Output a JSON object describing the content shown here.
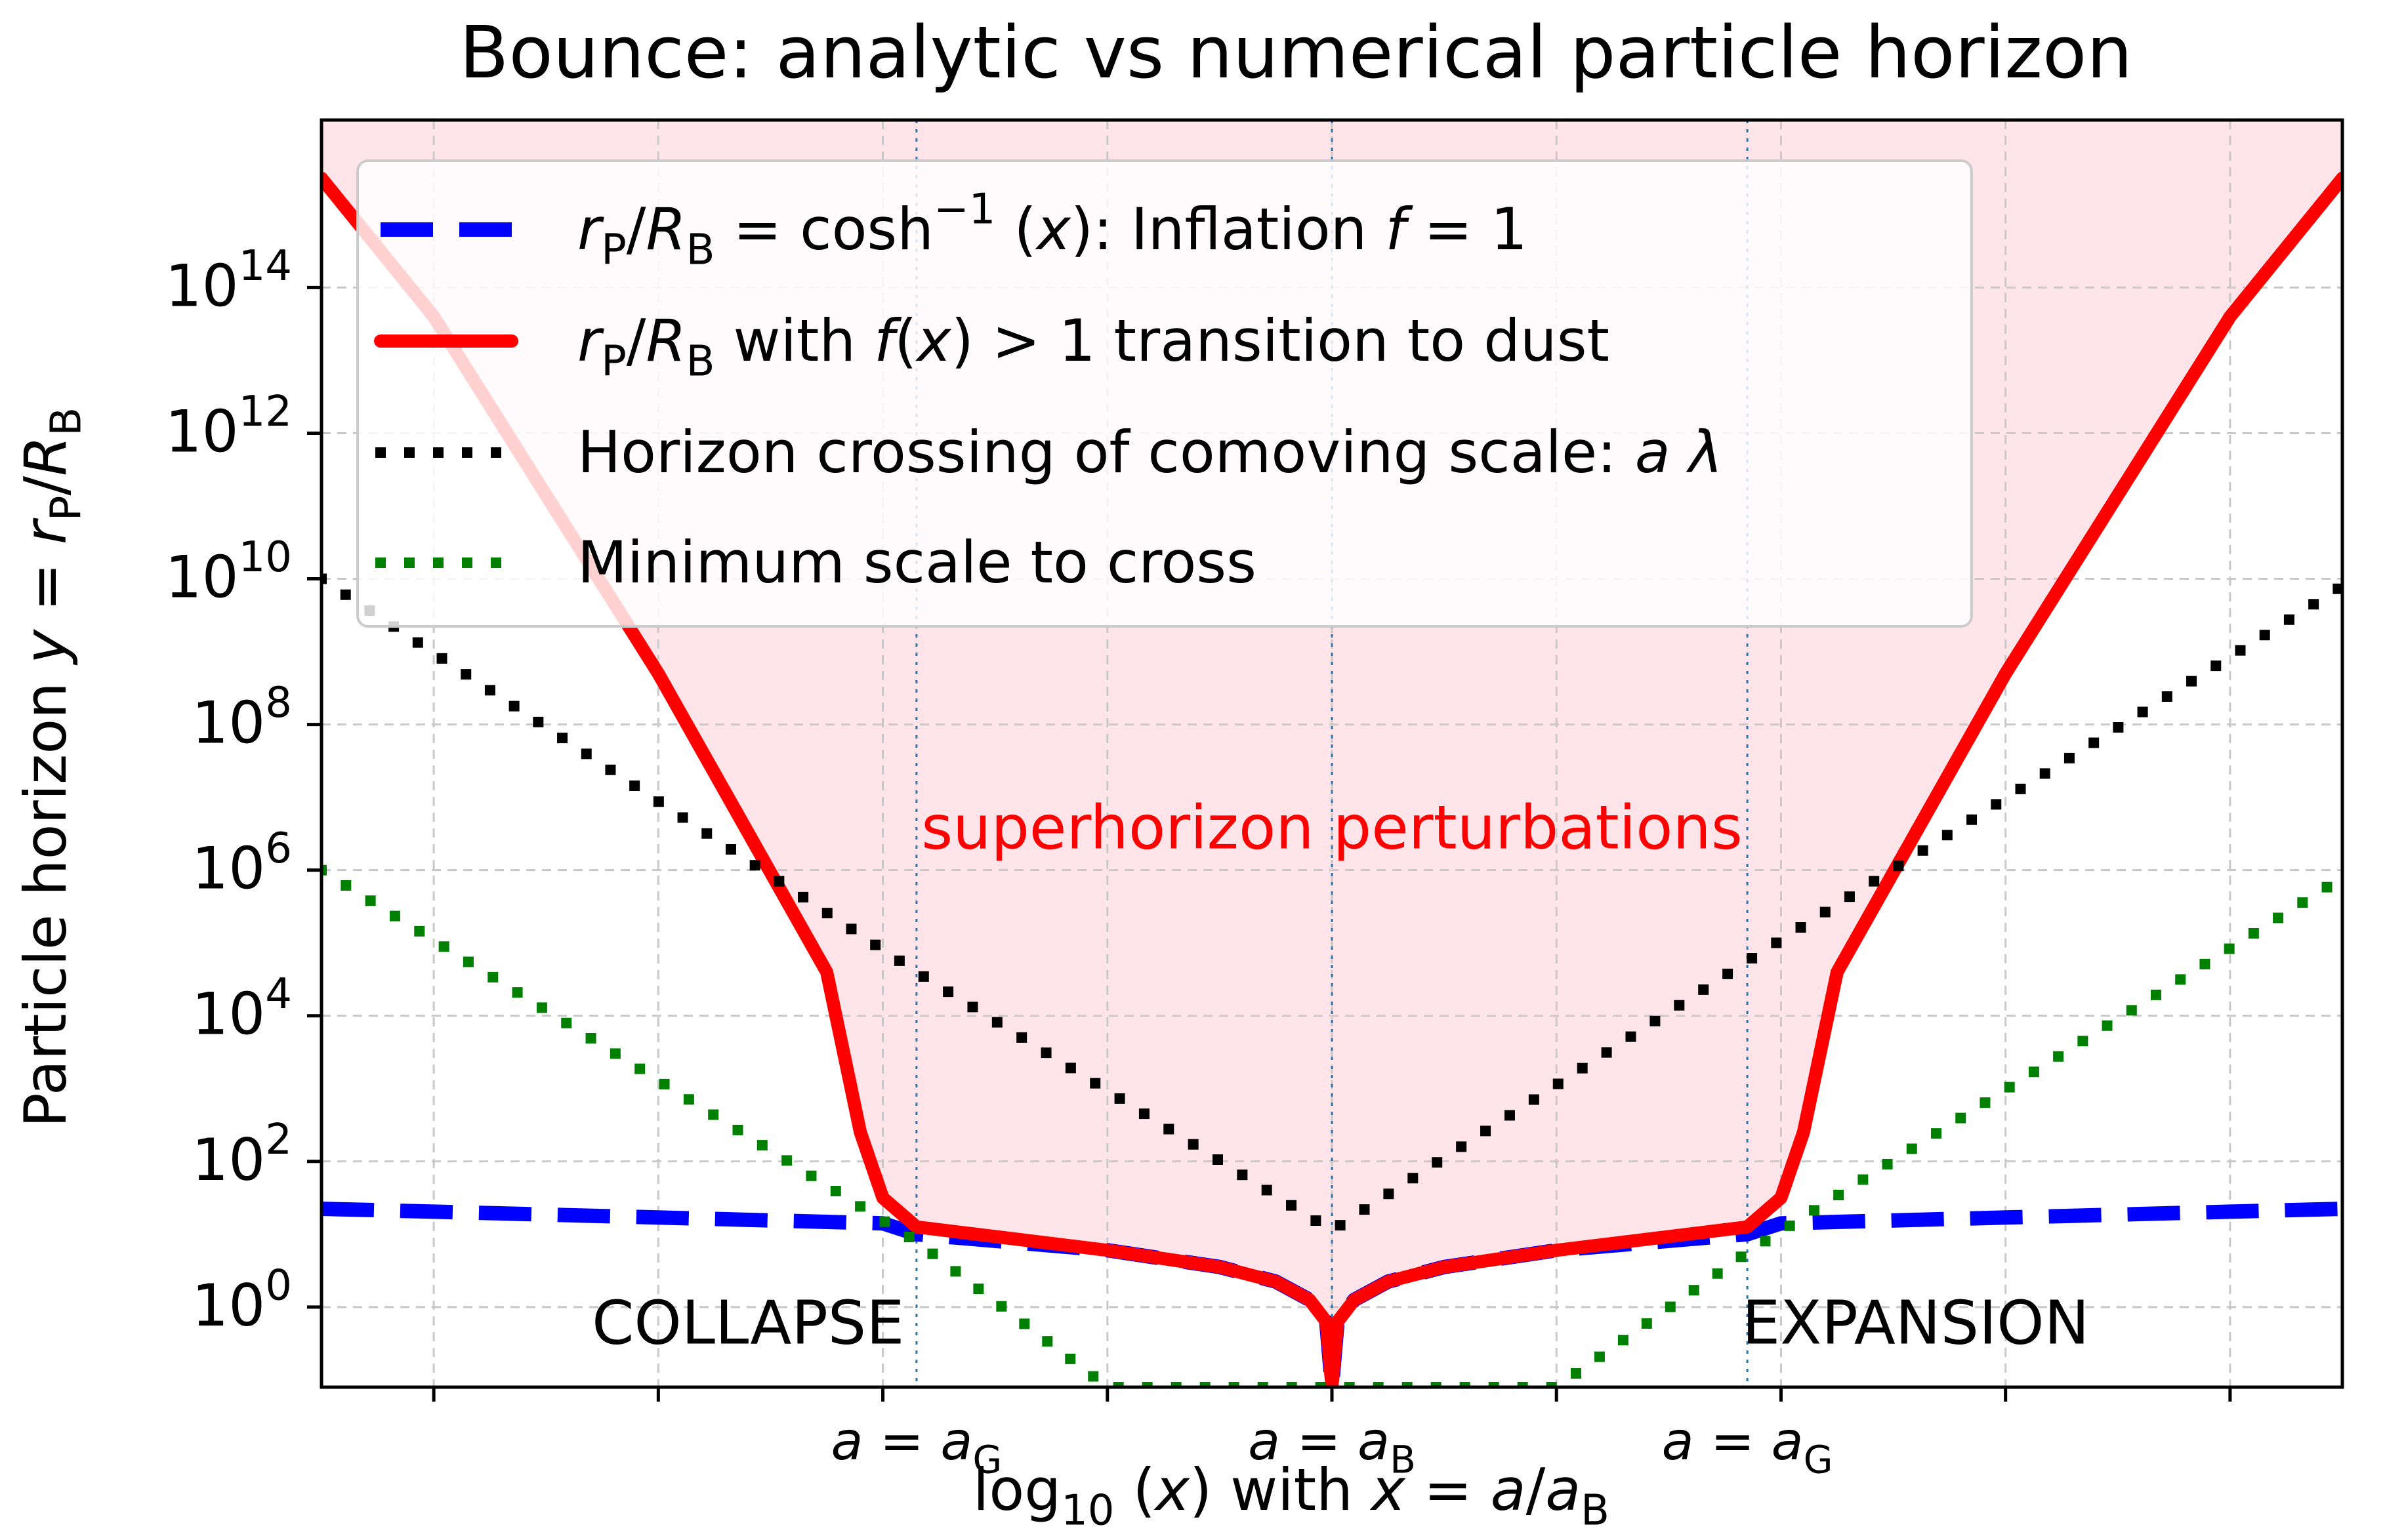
{
  "chart_data": {
    "type": "line",
    "title": "Bounce: analytic vs numerical particle horizon",
    "xlabel": "log₁₀ (x) with x = a/aʙ",
    "ylabel": "Particle horizon y = rₚ/Rʙ",
    "yscale": "log",
    "xlim": [
      -9,
      9
    ],
    "ylim_log10": [
      -1.1,
      16.3
    ],
    "ytick_exponents": [
      0,
      2,
      4,
      6,
      8,
      10,
      12,
      14
    ],
    "xticks": [
      -8,
      -6,
      -4,
      -2,
      0,
      2,
      4,
      6,
      8
    ],
    "x_label_ticks": [
      {
        "x": -3.7,
        "base": "a = a",
        "sub": "G"
      },
      {
        "x": 0,
        "base": "a = a",
        "sub": "B"
      },
      {
        "x": 3.7,
        "base": "a = a",
        "sub": "G"
      }
    ],
    "vlines": [
      -3.7,
      0,
      3.7
    ],
    "grid": true,
    "legend_position": "top-left",
    "legend": [
      {
        "key": "inflation",
        "parts": [
          [
            "i",
            "r"
          ],
          [
            "sub",
            "P"
          ],
          [
            "n",
            "/"
          ],
          [
            "i",
            "R"
          ],
          [
            "sub",
            "B"
          ],
          [
            "n",
            " = cosh"
          ],
          [
            "sup",
            "−1"
          ],
          [
            "n",
            " ("
          ],
          [
            "i",
            "x"
          ],
          [
            "n",
            "): Inflation "
          ],
          [
            "i",
            "f"
          ],
          [
            "n",
            " = 1"
          ]
        ]
      },
      {
        "key": "dust",
        "parts": [
          [
            "i",
            "r"
          ],
          [
            "sub",
            "P"
          ],
          [
            "n",
            "/"
          ],
          [
            "i",
            "R"
          ],
          [
            "sub",
            "B"
          ],
          [
            "n",
            " with "
          ],
          [
            "i",
            "f"
          ],
          [
            "n",
            "("
          ],
          [
            "i",
            "x"
          ],
          [
            "n",
            ") > 1 transition to dust"
          ]
        ]
      },
      {
        "key": "crossing",
        "parts": [
          [
            "n",
            "Horizon crossing of comoving scale: "
          ],
          [
            "i",
            "a λ"
          ]
        ]
      },
      {
        "key": "minimum",
        "parts": [
          [
            "n",
            "Minimum scale to cross"
          ]
        ]
      }
    ],
    "series": [
      {
        "key": "inflation",
        "name": "Inflation f = 1",
        "color": "#0000ff",
        "style": "dashed",
        "x": [
          -9,
          -8,
          -6,
          -4,
          -3.7,
          -2,
          -1,
          -0.5,
          -0.2,
          -0.05,
          0,
          0.05,
          0.2,
          0.5,
          1,
          2,
          3.7,
          4,
          6,
          8,
          9
        ],
        "log10y": [
          1.35,
          1.31,
          1.23,
          1.15,
          1.0,
          0.78,
          0.55,
          0.35,
          0.1,
          -0.2,
          -1.1,
          -0.2,
          0.1,
          0.35,
          0.55,
          0.78,
          1.0,
          1.15,
          1.23,
          1.31,
          1.35
        ]
      },
      {
        "key": "dust",
        "name": "f(x) > 1 transition to dust",
        "color": "#ff0000",
        "style": "solid",
        "x": [
          -9,
          -8,
          -6,
          -4.5,
          -4.2,
          -4.0,
          -3.7,
          -2,
          -1,
          -0.5,
          -0.2,
          -0.05,
          0,
          0.05,
          0.2,
          0.5,
          1,
          2,
          3.7,
          4.0,
          4.2,
          4.5,
          6,
          8,
          9
        ],
        "log10y": [
          15.5,
          13.6,
          8.7,
          4.6,
          2.4,
          1.5,
          1.1,
          0.78,
          0.55,
          0.35,
          0.1,
          -0.2,
          -1.1,
          -0.2,
          0.1,
          0.35,
          0.55,
          0.78,
          1.1,
          1.5,
          2.4,
          4.6,
          8.7,
          13.6,
          15.5
        ]
      },
      {
        "key": "crossing",
        "name": "Horizon crossing of comoving scale: aλ",
        "color": "#000000",
        "style": "dotted",
        "x": [
          -9,
          -3.7,
          0,
          3.7,
          9
        ],
        "log10y": [
          10.0,
          4.6,
          1.05,
          4.75,
          9.9
        ]
      },
      {
        "key": "minimum",
        "name": "Minimum scale to cross",
        "color": "#008000",
        "style": "dotted",
        "x": [
          -9,
          -3.7,
          -2.0,
          2.0,
          3.7,
          9
        ],
        "log10y": [
          6.0,
          0.9,
          -1.1,
          -1.1,
          0.75,
          5.9
        ]
      }
    ],
    "fill_region": {
      "label": "superhorizon perturbations",
      "color": "#ffe4ea"
    },
    "annotations": [
      {
        "text": "superhorizon perturbations",
        "x": 0,
        "log10y": 6.3,
        "color": "#ff0000"
      },
      {
        "text": "COLLAPSE",
        "x": -5.2,
        "log10y": -0.5,
        "color": "#000000"
      },
      {
        "text": "EXPANSION",
        "x": 5.2,
        "log10y": -0.5,
        "color": "#000000"
      }
    ]
  }
}
